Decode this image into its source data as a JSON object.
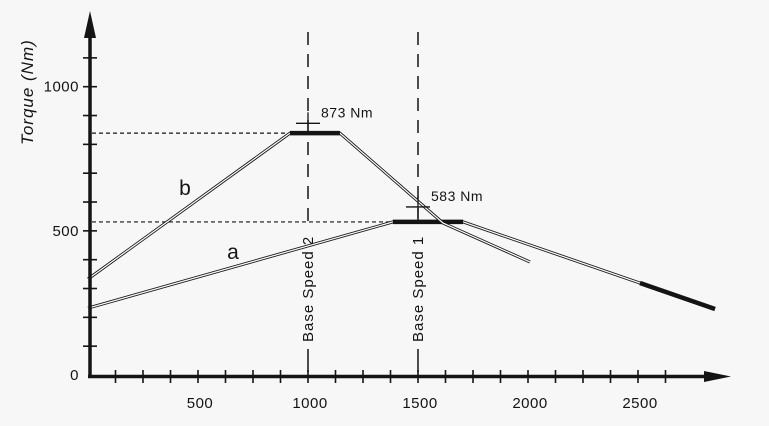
{
  "figure": {
    "background": "#f7f7f7"
  },
  "chart_data": {
    "type": "line",
    "title": "",
    "xlabel": "",
    "ylabel": "Torque (Nm)",
    "origin_label": "0",
    "grid": "off",
    "legend": "none",
    "x_axis": {
      "labeled_ticks": [
        500,
        1000,
        1500,
        2000,
        2500
      ],
      "minor_tick_step": 125,
      "min": 0,
      "max_visible": 2810
    },
    "y_axis": {
      "labeled_ticks": [
        500,
        1000
      ],
      "minor_tick_step": 100,
      "min": 0,
      "max_visible": 1150
    },
    "series": [
      {
        "name": "a",
        "label": "a",
        "label_pos": [
          659,
          427
        ],
        "style": "double-outline",
        "points": [
          [
            0,
            232
          ],
          [
            1386,
            531
          ],
          [
            1705,
            531
          ],
          [
            2850,
            229
          ]
        ],
        "thick_segments": [
          [
            [
              1386,
              531
            ],
            [
              1705,
              531
            ]
          ],
          [
            [
              2509,
              319
            ],
            [
              2850,
              229
            ]
          ]
        ]
      },
      {
        "name": "b",
        "label": "b",
        "label_pos": [
          441,
          649
        ],
        "style": "double-outline",
        "points": [
          [
            0,
            333
          ],
          [
            918,
            839
          ],
          [
            1145,
            839
          ],
          [
            1614,
            527
          ],
          [
            2009,
            392
          ]
        ],
        "thick_segments": [
          [
            [
              918,
              839
            ],
            [
              1145,
              839
            ]
          ]
        ]
      }
    ],
    "annotations": [
      {
        "text": "873 Nm",
        "x": 1000,
        "y": 873,
        "marker": "plus"
      },
      {
        "text": "583 Nm",
        "x": 1500,
        "y": 583,
        "marker": "plus"
      }
    ],
    "base_speed_lines": [
      {
        "label": "Base Speed 2",
        "x": 1000
      },
      {
        "label": "Base Speed 1",
        "x": 1500
      }
    ],
    "ref_levels": [
      {
        "y": 839,
        "x_from": 0,
        "x_to": 918
      },
      {
        "y": 531,
        "x_from": 0,
        "x_to": 1386
      }
    ],
    "colors": {
      "ink": "#141414",
      "background": "#f7f7f7"
    }
  }
}
